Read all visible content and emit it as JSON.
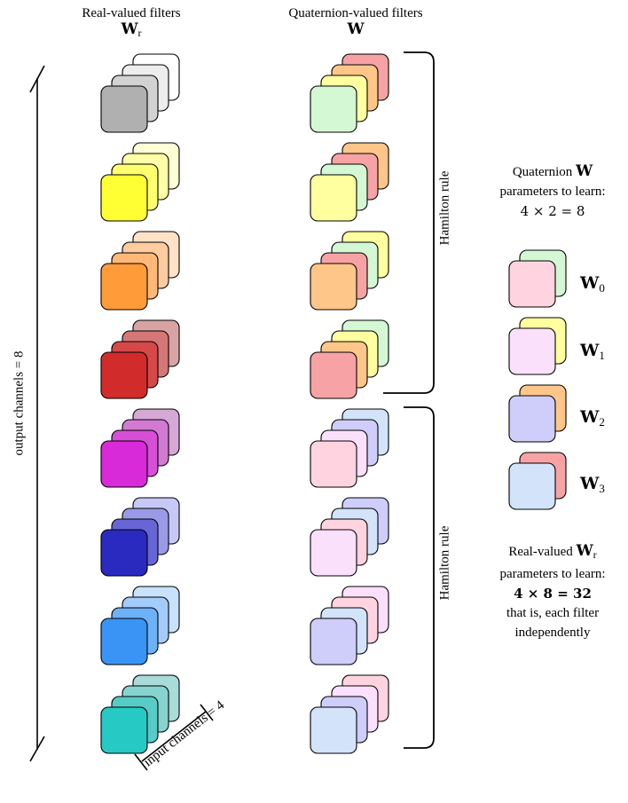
{
  "headers": {
    "real_title": "Real-valued filters",
    "real_symbol": "W",
    "real_symbol_sub": "r",
    "quat_title": "Quaternion-valued filters",
    "quat_symbol": "W"
  },
  "axis_labels": {
    "output_channels": "output channels = 8",
    "input_channels": "input channels = 4"
  },
  "hamilton": {
    "top": "Hamilton rule",
    "bottom": "Hamilton rule"
  },
  "quat_info": {
    "line1_prefix": "Quaternion",
    "line1_symbol": "W",
    "line2": "parameters to learn:",
    "line3": "4 × 2 = 8"
  },
  "legend": [
    {
      "symbol": "W",
      "sub": "0",
      "back_color": "#d4f7d4",
      "front_color": "#ffd4e0"
    },
    {
      "symbol": "W",
      "sub": "1",
      "back_color": "#ffff9f",
      "front_color": "#fbe0fb"
    },
    {
      "symbol": "W",
      "sub": "2",
      "back_color": "#ffc68a",
      "front_color": "#cfcdf9"
    },
    {
      "symbol": "W",
      "sub": "3",
      "back_color": "#f7a3a5",
      "front_color": "#d2e3fa"
    }
  ],
  "real_info": {
    "line1_prefix": "Real-valued",
    "line1_symbol": "W",
    "line1_sub": "r",
    "line2": "parameters to learn:",
    "line3": "4 × 8 = 32",
    "line4": "that is, each filter",
    "line5": "independently"
  },
  "colors": {
    "real_filters": [
      [
        "#ffffff",
        "#ededed",
        "#d2d2d2",
        "#b0b0b0"
      ],
      [
        "#ffffd6",
        "#ffffa8",
        "#ffff70",
        "#ffff33"
      ],
      [
        "#ffe2c8",
        "#ffcb9f",
        "#ffb878",
        "#ff9b38"
      ],
      [
        "#d9a3a3",
        "#d67777",
        "#d74848",
        "#d22b2b"
      ],
      [
        "#d6a8d6",
        "#d27ad2",
        "#d64fd6",
        "#d82ad8"
      ],
      [
        "#c8c8f6",
        "#9a9ae8",
        "#6666d6",
        "#2a2ac0"
      ],
      [
        "#c8e2fb",
        "#a3ccfa",
        "#6db1f8",
        "#3a94f6"
      ],
      [
        "#a9dbd8",
        "#86d3cf",
        "#57cbc6",
        "#27c9c4"
      ]
    ],
    "quat_filters": [
      [
        "#f7a3a5",
        "#ffc68a",
        "#ffff9f",
        "#d4f7d4"
      ],
      [
        "#ffc68a",
        "#f7a3a5",
        "#d4f7d4",
        "#ffff9f"
      ],
      [
        "#ffff9f",
        "#d4f7d4",
        "#f7a3a5",
        "#ffc68a"
      ],
      [
        "#d4f7d4",
        "#ffff9f",
        "#ffc68a",
        "#f7a3a5"
      ],
      [
        "#d2e3fa",
        "#cfcdf9",
        "#fbe0fb",
        "#ffd4e0"
      ],
      [
        "#cfcdf9",
        "#d2e3fa",
        "#ffd4e0",
        "#fbe0fb"
      ],
      [
        "#fbe0fb",
        "#ffd4e0",
        "#d2e3fa",
        "#cfcdf9"
      ],
      [
        "#ffd4e0",
        "#fbe0fb",
        "#cfcdf9",
        "#d2e3fa"
      ]
    ]
  }
}
